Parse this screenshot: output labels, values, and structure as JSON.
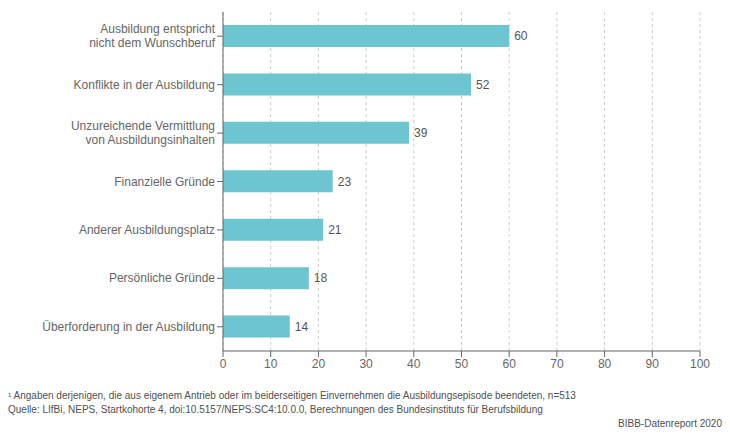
{
  "chart_data": {
    "type": "bar",
    "orientation": "horizontal",
    "categories": [
      "Ausbildung entspricht\nnicht dem Wunschberuf",
      "Konflikte in der Ausbildung",
      "Unzureichende Vermittlung\nvon Ausbildungsinhalten",
      "Finanzielle Gründe",
      "Anderer Ausbildungsplatz",
      "Persönliche Gründe",
      "Überforderung in der Ausbildung"
    ],
    "values": [
      60,
      52,
      39,
      23,
      21,
      18,
      14
    ],
    "color": "#6cc5d1",
    "xlim": [
      0,
      100
    ],
    "xticks": [
      0,
      10,
      20,
      30,
      40,
      50,
      60,
      70,
      80,
      90,
      100
    ],
    "grid": true,
    "data_labels": true,
    "annotations": [
      "¹ Angaben derjenigen, die aus eigenem Antrieb oder im beiderseitigen Einvernehmen die Ausbildungsepisode beendeten, n=513",
      "Quelle: LIfBi, NEPS, Startkohorte 4, doi:10.5157/NEPS:SC4:10.0.0, Berechnungen des Bundesinstituts für Berufsbildung",
      "BIBB-Datenreport 2020"
    ]
  }
}
